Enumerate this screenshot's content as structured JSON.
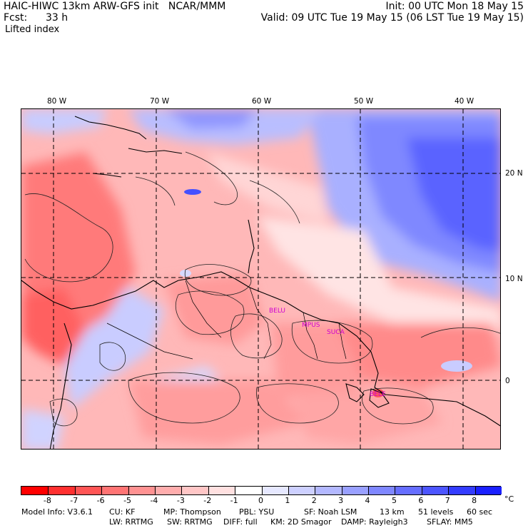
{
  "header": {
    "line1_left": "HAIC-HIWC 13km ARW-GFS init   NCAR/MMM",
    "line1_right": "Init: 00 UTC Mon 18 May 15",
    "line2_left_label": "Fcst:",
    "line2_left_value": "33 h",
    "line2_right": "Valid: 09 UTC Tue 19 May 15 (06 LST Tue 19 May 15)",
    "field_name": "Lifted index"
  },
  "map": {
    "lon_labels": [
      "80 W",
      "70 W",
      "60 W",
      "50 W",
      "40 W"
    ],
    "lat_labels": [
      "20 N",
      "10 N",
      "0"
    ],
    "stations": [
      "BELU",
      "MPUS",
      "SUCA",
      "BELE"
    ]
  },
  "colorbar": {
    "unit": "°C",
    "ticks": [
      "-8",
      "-7",
      "-6",
      "-5",
      "-4",
      "-3",
      "-2",
      "-1",
      "0",
      "1",
      "2",
      "3",
      "4",
      "5",
      "6",
      "7",
      "8"
    ],
    "colors": [
      "#ff0000",
      "#ff3030",
      "#ff5555",
      "#ff7474",
      "#ff9292",
      "#ffadad",
      "#ffc6c6",
      "#ffe0e0",
      "#ffffff",
      "#e6e8ff",
      "#cdd0ff",
      "#b3b8ff",
      "#99a0ff",
      "#7f87ff",
      "#666eff",
      "#4c55ff",
      "#333cff",
      "#1a20ff"
    ]
  },
  "model_info": {
    "line1": [
      "Model Info: V3.6.1",
      "CU: KF",
      "MP: Thompson",
      "PBL: YSU",
      "SF: Noah LSM",
      "13 km",
      "51 levels",
      "60 sec"
    ],
    "line2": [
      "LW: RRTMG",
      "SW: RRTMG",
      "DIFF: full",
      "KM: 2D Smagor",
      "DAMP: Rayleigh3",
      "SFLAY: MM5"
    ]
  }
}
